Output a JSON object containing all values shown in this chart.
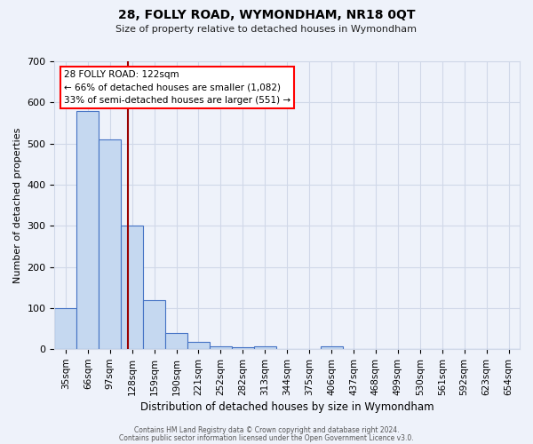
{
  "title": "28, FOLLY ROAD, WYMONDHAM, NR18 0QT",
  "subtitle": "Size of property relative to detached houses in Wymondham",
  "xlabel": "Distribution of detached houses by size in Wymondham",
  "ylabel": "Number of detached properties",
  "footnote1": "Contains HM Land Registry data © Crown copyright and database right 2024.",
  "footnote2": "Contains public sector information licensed under the Open Government Licence v3.0.",
  "bar_labels": [
    "35sqm",
    "66sqm",
    "97sqm",
    "128sqm",
    "159sqm",
    "190sqm",
    "221sqm",
    "252sqm",
    "282sqm",
    "313sqm",
    "344sqm",
    "375sqm",
    "406sqm",
    "437sqm",
    "468sqm",
    "499sqm",
    "530sqm",
    "561sqm",
    "592sqm",
    "623sqm",
    "654sqm"
  ],
  "bar_values": [
    100,
    580,
    510,
    300,
    120,
    40,
    17,
    8,
    5,
    6,
    0,
    0,
    8,
    0,
    0,
    0,
    0,
    0,
    0,
    0,
    0
  ],
  "bar_color": "#c5d8f0",
  "bar_edge_color": "#4472c4",
  "grid_color": "#d0d8e8",
  "background_color": "#eef2fa",
  "annotation_line1": "28 FOLLY ROAD: 122sqm",
  "annotation_line2": "← 66% of detached houses are smaller (1,082)",
  "annotation_line3": "33% of semi-detached houses are larger (551) →",
  "annotation_box_color": "white",
  "annotation_box_edge": "red",
  "ylim": [
    0,
    700
  ],
  "yticks": [
    0,
    100,
    200,
    300,
    400,
    500,
    600,
    700
  ]
}
